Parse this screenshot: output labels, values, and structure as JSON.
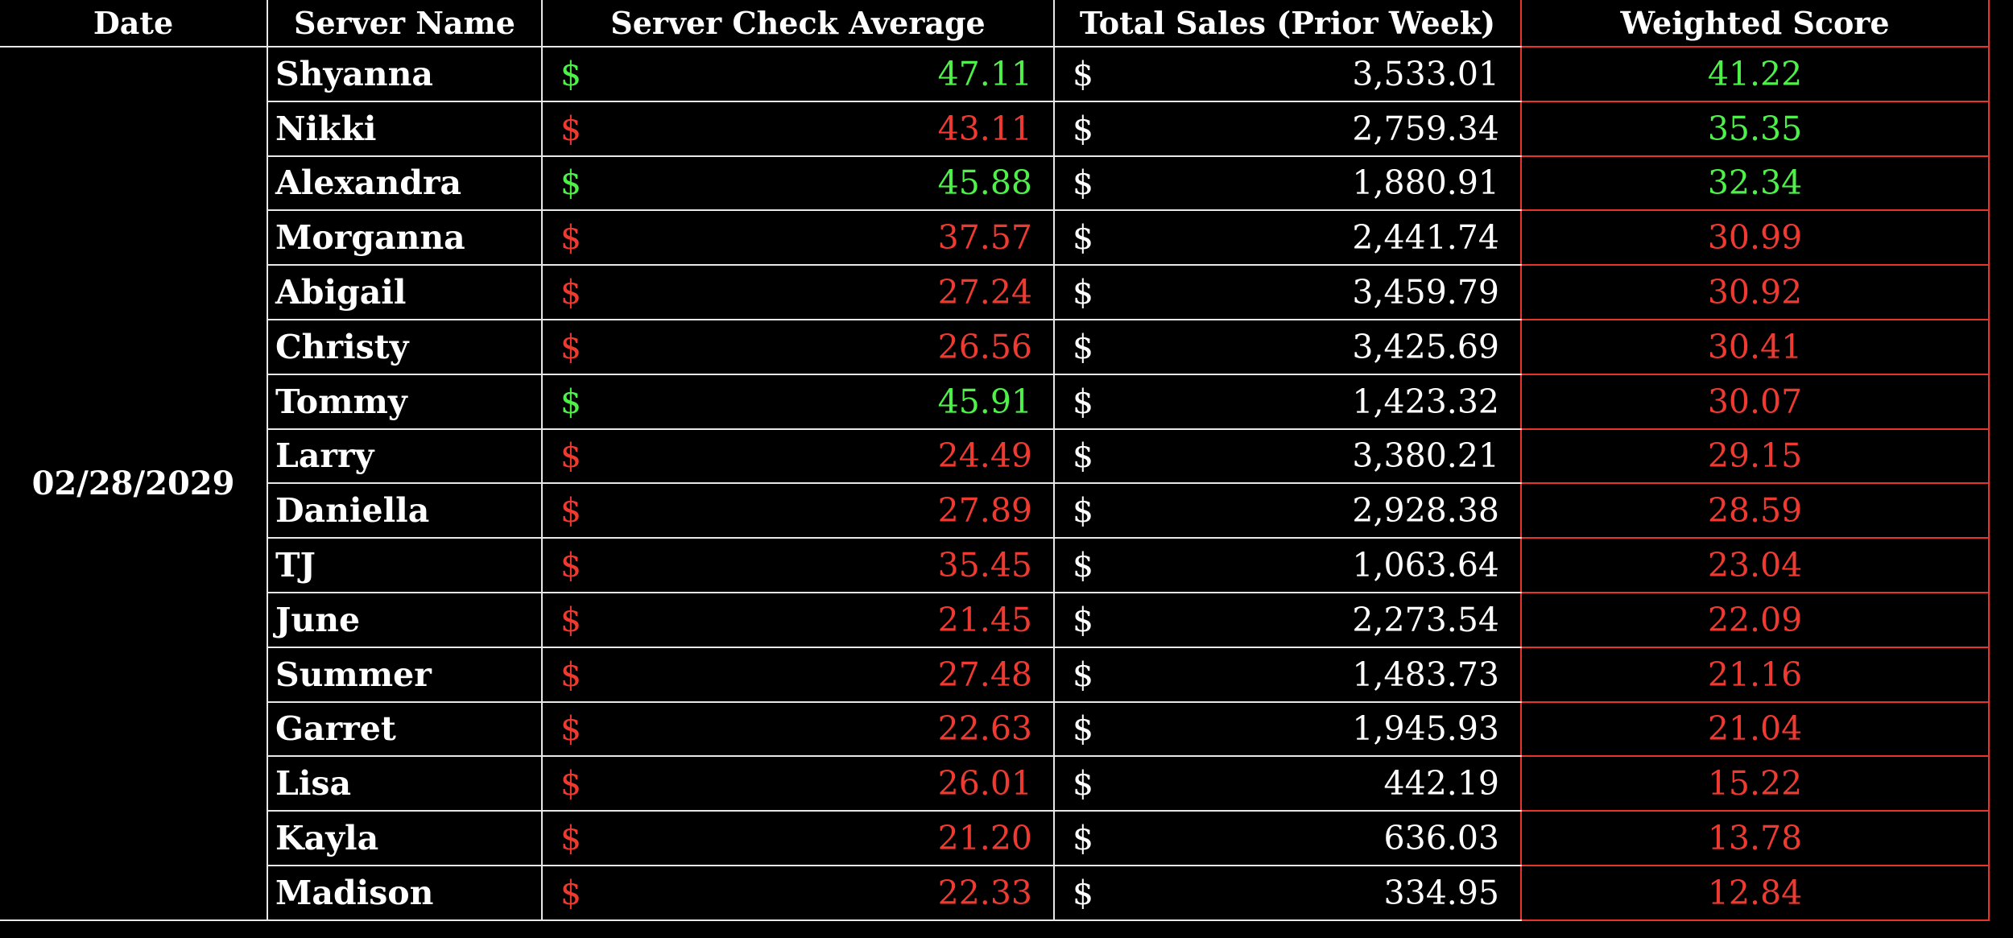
{
  "colors": {
    "background": "#000000",
    "text": "#ffffff",
    "positive": "#4ef04a",
    "negative": "#ee3a31",
    "score_border": "#e8352b"
  },
  "headers": {
    "date": "Date",
    "server_name": "Server Name",
    "check_average": "Server Check Average",
    "total_sales": "Total Sales (Prior Week)",
    "weighted_score": "Weighted Score"
  },
  "date": "02/28/2029",
  "currency_symbol": "$",
  "rows": [
    {
      "name": "Shyanna",
      "check_average": "47.11",
      "check_status": "positive",
      "total_sales": "3,533.01",
      "weighted_score": "41.22",
      "score_status": "positive"
    },
    {
      "name": "Nikki",
      "check_average": "43.11",
      "check_status": "negative",
      "total_sales": "2,759.34",
      "weighted_score": "35.35",
      "score_status": "positive"
    },
    {
      "name": "Alexandra",
      "check_average": "45.88",
      "check_status": "positive",
      "total_sales": "1,880.91",
      "weighted_score": "32.34",
      "score_status": "positive"
    },
    {
      "name": "Morganna",
      "check_average": "37.57",
      "check_status": "negative",
      "total_sales": "2,441.74",
      "weighted_score": "30.99",
      "score_status": "negative"
    },
    {
      "name": "Abigail",
      "check_average": "27.24",
      "check_status": "negative",
      "total_sales": "3,459.79",
      "weighted_score": "30.92",
      "score_status": "negative"
    },
    {
      "name": "Christy",
      "check_average": "26.56",
      "check_status": "negative",
      "total_sales": "3,425.69",
      "weighted_score": "30.41",
      "score_status": "negative"
    },
    {
      "name": "Tommy",
      "check_average": "45.91",
      "check_status": "positive",
      "total_sales": "1,423.32",
      "weighted_score": "30.07",
      "score_status": "negative"
    },
    {
      "name": "Larry",
      "check_average": "24.49",
      "check_status": "negative",
      "total_sales": "3,380.21",
      "weighted_score": "29.15",
      "score_status": "negative"
    },
    {
      "name": "Daniella",
      "check_average": "27.89",
      "check_status": "negative",
      "total_sales": "2,928.38",
      "weighted_score": "28.59",
      "score_status": "negative"
    },
    {
      "name": "TJ",
      "check_average": "35.45",
      "check_status": "negative",
      "total_sales": "1,063.64",
      "weighted_score": "23.04",
      "score_status": "negative"
    },
    {
      "name": "June",
      "check_average": "21.45",
      "check_status": "negative",
      "total_sales": "2,273.54",
      "weighted_score": "22.09",
      "score_status": "negative"
    },
    {
      "name": "Summer",
      "check_average": "27.48",
      "check_status": "negative",
      "total_sales": "1,483.73",
      "weighted_score": "21.16",
      "score_status": "negative"
    },
    {
      "name": "Garret",
      "check_average": "22.63",
      "check_status": "negative",
      "total_sales": "1,945.93",
      "weighted_score": "21.04",
      "score_status": "negative"
    },
    {
      "name": "Lisa",
      "check_average": "26.01",
      "check_status": "negative",
      "total_sales": "442.19",
      "weighted_score": "15.22",
      "score_status": "negative"
    },
    {
      "name": "Kayla",
      "check_average": "21.20",
      "check_status": "negative",
      "total_sales": "636.03",
      "weighted_score": "13.78",
      "score_status": "negative"
    },
    {
      "name": "Madison",
      "check_average": "22.33",
      "check_status": "negative",
      "total_sales": "334.95",
      "weighted_score": "12.84",
      "score_status": "negative"
    }
  ]
}
